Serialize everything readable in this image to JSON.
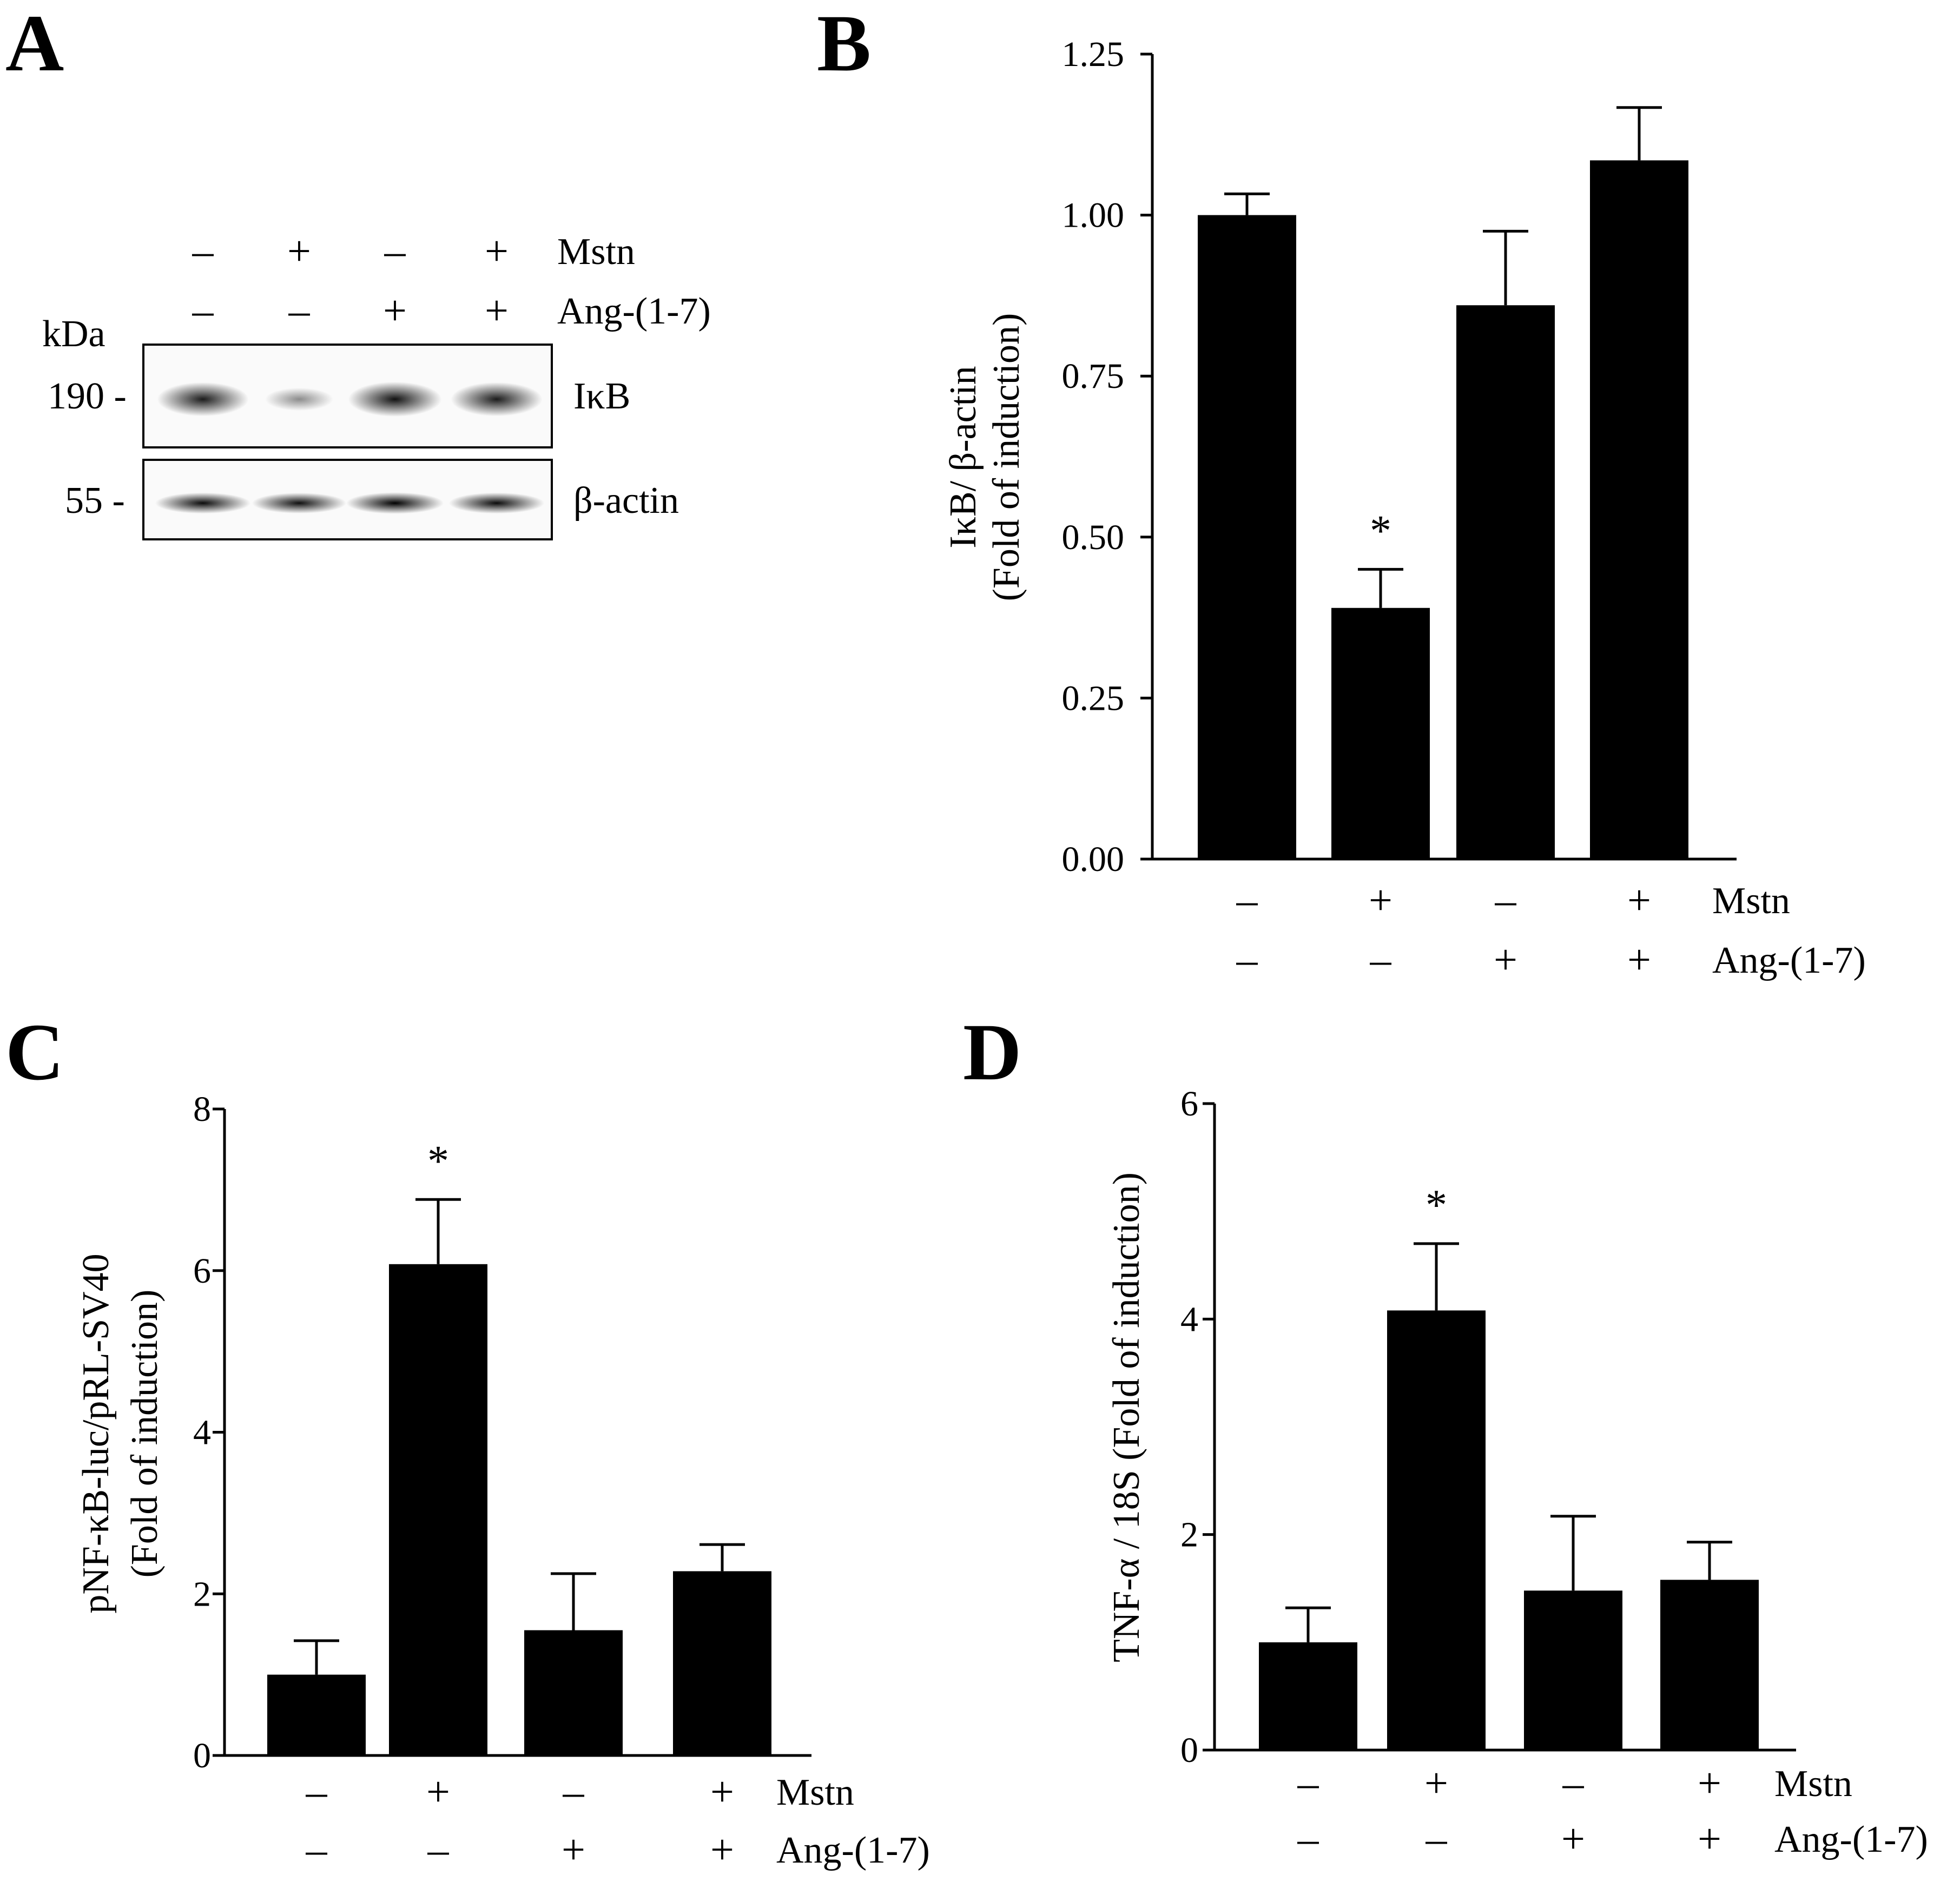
{
  "panels": {
    "A": {
      "letter": "A"
    },
    "B": {
      "letter": "B"
    },
    "C": {
      "letter": "C"
    },
    "D": {
      "letter": "D"
    }
  },
  "blot": {
    "kda_label": "kDa",
    "row_labels": [
      "Mstn",
      "Ang-(1-7)"
    ],
    "mstn_signs": [
      "–",
      "+",
      "–",
      "+"
    ],
    "ang_signs": [
      "–",
      "–",
      "+",
      "+"
    ],
    "bands": [
      {
        "label": "IκB",
        "marker": "190 -",
        "intensities": [
          0.85,
          0.25,
          0.9,
          0.85
        ]
      },
      {
        "label": "β-actin",
        "marker": "55 -",
        "intensities": [
          0.95,
          0.92,
          1.0,
          0.95
        ]
      }
    ]
  },
  "treatment_labels": [
    "Mstn",
    "Ang-(1-7)"
  ],
  "mstn_signs": [
    "–",
    "+",
    "–",
    "+"
  ],
  "ang_signs": [
    "–",
    "–",
    "+",
    "+"
  ],
  "chart_data": [
    {
      "panel": "B",
      "type": "bar",
      "ylabel_line1": "IκB/ β-actin",
      "ylabel_line2": "(Fold of induction)",
      "ylim": [
        0,
        1.25
      ],
      "yticks": [
        0,
        0.25,
        0.5,
        0.75,
        1.0,
        1.25
      ],
      "ytick_labels": [
        "0.00",
        "0.25",
        "0.50",
        "0.75",
        "1.00",
        "1.25"
      ],
      "values": [
        1.0,
        0.39,
        0.86,
        1.085
      ],
      "errors": [
        0.033,
        0.06,
        0.115,
        0.082
      ],
      "significance": [
        "",
        "*",
        "",
        ""
      ]
    },
    {
      "panel": "C",
      "type": "bar",
      "ylabel_line1": "pNF-κB-luc/pRL-SV40",
      "ylabel_line2": "(Fold of induction)",
      "ylim": [
        0,
        8
      ],
      "yticks": [
        0,
        2,
        4,
        6,
        8
      ],
      "ytick_labels": [
        "0",
        "2",
        "4",
        "6",
        "8"
      ],
      "values": [
        1.0,
        6.08,
        1.55,
        2.28
      ],
      "errors": [
        0.42,
        0.8,
        0.7,
        0.33
      ],
      "significance": [
        "",
        "*",
        "",
        ""
      ]
    },
    {
      "panel": "D",
      "type": "bar",
      "ylabel_line1": "TNF-α / 18S (Fold of induction)",
      "ylabel_line2": "",
      "ylim": [
        0,
        6
      ],
      "yticks": [
        0,
        2,
        4,
        6
      ],
      "ytick_labels": [
        "0",
        "2",
        "4",
        "6"
      ],
      "values": [
        1.0,
        4.08,
        1.48,
        1.58
      ],
      "errors": [
        0.32,
        0.62,
        0.69,
        0.35
      ],
      "significance": [
        "",
        "*",
        "",
        ""
      ]
    }
  ]
}
